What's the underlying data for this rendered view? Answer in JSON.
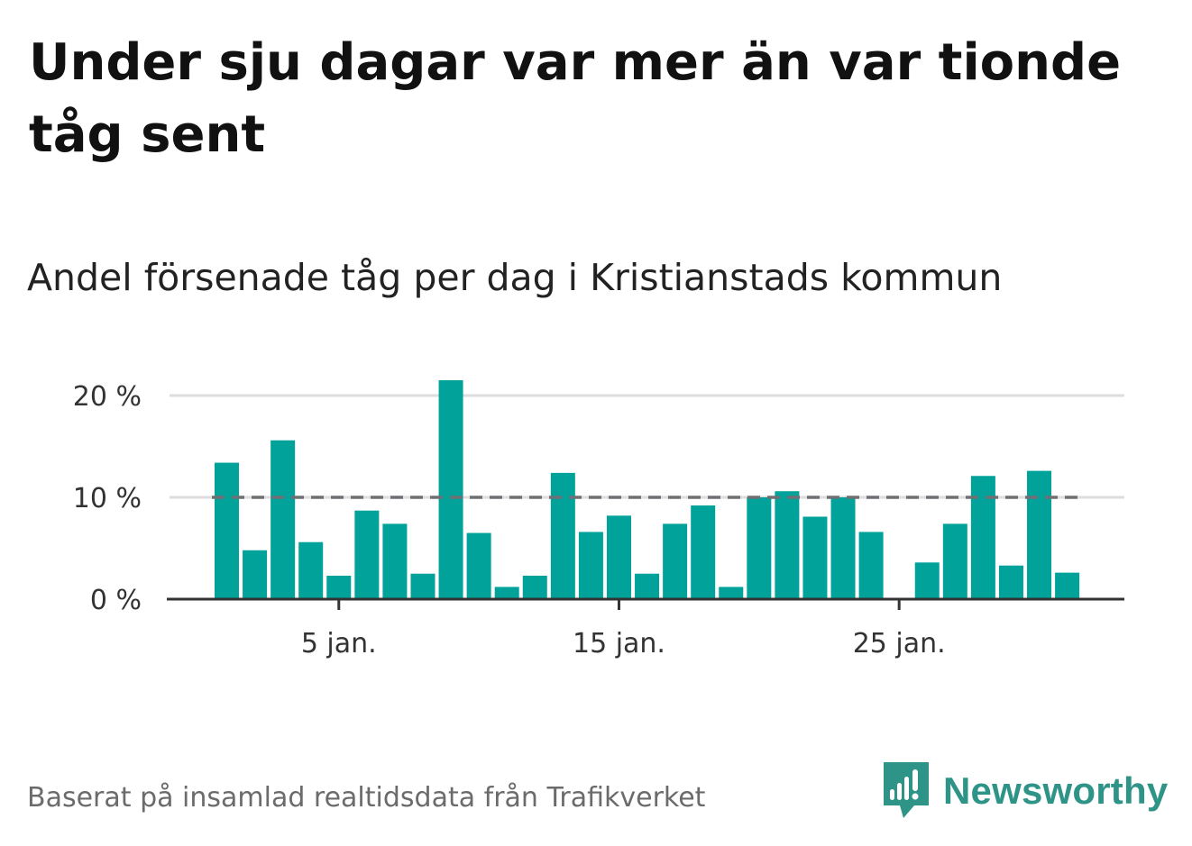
{
  "title": "Under sju dagar var mer än var tionde tåg sent",
  "subtitle": "Andel försenade tåg per dag i Kristianstads kommun",
  "footer": "Baserat på insamlad realtidsdata från Trafikverket",
  "brand": {
    "name": "Newsworthy",
    "icon": "newsworthy-logo-icon",
    "color": "#2f9488"
  },
  "colors": {
    "bar": "#00a29a",
    "reference_line": "#6f6f74",
    "grid": "#dddddd",
    "axis": "#333333"
  },
  "chart_data": {
    "type": "bar",
    "x": [
      "1 jan.",
      "2 jan.",
      "3 jan.",
      "4 jan.",
      "5 jan.",
      "6 jan.",
      "7 jan.",
      "8 jan.",
      "9 jan.",
      "10 jan.",
      "11 jan.",
      "12 jan.",
      "13 jan.",
      "14 jan.",
      "15 jan.",
      "16 jan.",
      "17 jan.",
      "18 jan.",
      "19 jan.",
      "20 jan.",
      "21 jan.",
      "22 jan.",
      "23 jan.",
      "24 jan.",
      "25 jan.",
      "26 jan.",
      "27 jan.",
      "28 jan.",
      "29 jan.",
      "30 jan.",
      "31 jan."
    ],
    "values": [
      13.4,
      4.8,
      15.6,
      5.6,
      2.3,
      8.7,
      7.4,
      2.5,
      21.5,
      6.5,
      1.2,
      2.3,
      12.4,
      6.6,
      8.2,
      2.5,
      7.4,
      9.2,
      1.2,
      10.0,
      10.6,
      8.1,
      10.0,
      6.6,
      0,
      3.6,
      7.4,
      12.1,
      3.3,
      12.6,
      2.6
    ],
    "x_ticks": [
      {
        "day": 5,
        "label": "5 jan."
      },
      {
        "day": 15,
        "label": "15 jan."
      },
      {
        "day": 25,
        "label": "25 jan."
      }
    ],
    "y_ticks": [
      {
        "value": 0,
        "label": "0 %"
      },
      {
        "value": 10,
        "label": "10 %"
      },
      {
        "value": 20,
        "label": "20 %"
      }
    ],
    "ylim": [
      0,
      20
    ],
    "reference_line": 10,
    "xlabel": "",
    "ylabel": "",
    "grid": true
  }
}
